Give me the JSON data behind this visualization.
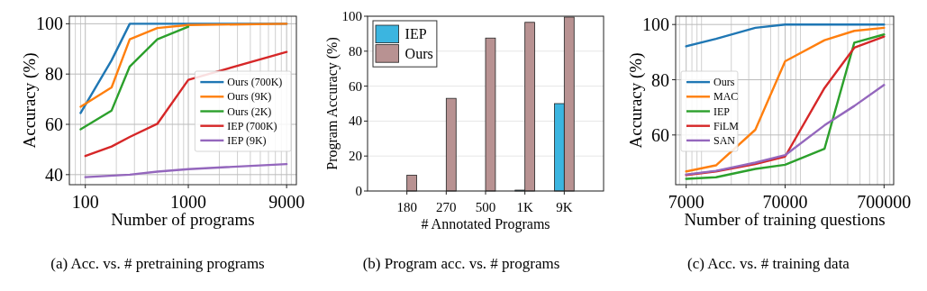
{
  "chart_data": [
    {
      "type": "line",
      "xlabel": "Number of programs",
      "ylabel": "Accuracy (%)",
      "annotations": [
        "(a) Acc. vs. # pretraining programs"
      ],
      "log": "x",
      "xlim": [
        70,
        11200
      ],
      "ylim": [
        36,
        103
      ],
      "xticks": [
        {
          "value": 80,
          "label": null
        },
        {
          "value": 90,
          "label": null
        },
        100,
        {
          "value": 200,
          "label": null
        },
        {
          "value": 300,
          "label": null
        },
        {
          "value": 400,
          "label": null
        },
        {
          "value": 500,
          "label": null
        },
        {
          "value": 600,
          "label": null
        },
        {
          "value": 700,
          "label": null
        },
        {
          "value": 800,
          "label": null
        },
        {
          "value": 900,
          "label": null
        },
        1000,
        {
          "value": 2000,
          "label": null
        },
        {
          "value": 3000,
          "label": null
        },
        {
          "value": 4000,
          "label": null
        },
        {
          "value": 5000,
          "label": null
        },
        {
          "value": 6000,
          "label": null
        },
        {
          "value": 7000,
          "label": null
        },
        {
          "value": 8000,
          "label": null
        },
        9000,
        {
          "value": 10000,
          "label": null
        }
      ],
      "yticks": [
        40,
        60,
        80,
        100
      ],
      "grid": true,
      "legend": "right",
      "series": [
        {
          "name": "Ours (700K)",
          "color": "#1f77b4",
          "x": [
            90,
            180,
            270,
            500,
            1000,
            9000
          ],
          "values": [
            64.5,
            85.5,
            100,
            100,
            100,
            100
          ]
        },
        {
          "name": "Ours (9K)",
          "color": "#ff7f0e",
          "x": [
            90,
            180,
            270,
            500,
            1000,
            9000
          ],
          "values": [
            67,
            74.7,
            93.8,
            98.3,
            99.5,
            100
          ]
        },
        {
          "name": "Ours (2K)",
          "color": "#2ca02c",
          "x": [
            90,
            180,
            270,
            500,
            1000
          ],
          "values": [
            58,
            65.5,
            83,
            93.8,
            98.8
          ]
        },
        {
          "name": "IEP (700K)",
          "color": "#d62728",
          "x": [
            100,
            180,
            270,
            500,
            1000,
            9000
          ],
          "values": [
            47.4,
            51.2,
            55,
            60.2,
            77.7,
            88.8
          ]
        },
        {
          "name": "IEP (9K)",
          "color": "#9467bd",
          "x": [
            100,
            270,
            500,
            1000,
            9000
          ],
          "values": [
            39,
            40,
            41.2,
            42.2,
            44.2
          ]
        }
      ]
    },
    {
      "type": "bar",
      "xlabel": "# Annotated Programs",
      "ylabel": "Program Accuracy (%)",
      "annotations": [
        "(b) Program acc. vs. # programs"
      ],
      "categories": [
        "180",
        "270",
        "500",
        "1K",
        "9K"
      ],
      "ylim": [
        0,
        100
      ],
      "yticks": [
        0,
        20,
        40,
        60,
        80,
        100
      ],
      "grid": "y",
      "legend": "top left",
      "series": [
        {
          "name": "IEP",
          "color": "#3bb5e0",
          "values": [
            0,
            0,
            0,
            0.5,
            50
          ]
        },
        {
          "name": "Ours",
          "color": "#b89292",
          "values": [
            9,
            53,
            87.5,
            96.5,
            99.5
          ]
        }
      ]
    },
    {
      "type": "line",
      "xlabel": "Number of training questions",
      "ylabel": "Accuracy (%)",
      "annotations": [
        "(c) Acc. vs. # training data"
      ],
      "log": "x",
      "xlim": [
        5480,
        875000
      ],
      "ylim": [
        42,
        103
      ],
      "xticks": [
        {
          "value": 6000,
          "label": null
        },
        7000,
        {
          "value": 8000,
          "label": null
        },
        {
          "value": 9000,
          "label": null
        },
        {
          "value": 10000,
          "label": null
        },
        {
          "value": 20000,
          "label": null
        },
        {
          "value": 30000,
          "label": null
        },
        {
          "value": 40000,
          "label": null
        },
        {
          "value": 50000,
          "label": null
        },
        {
          "value": 60000,
          "label": null
        },
        70000,
        {
          "value": 80000,
          "label": null
        },
        {
          "value": 90000,
          "label": null
        },
        {
          "value": 100000,
          "label": null
        },
        {
          "value": 200000,
          "label": null
        },
        {
          "value": 300000,
          "label": null
        },
        {
          "value": 400000,
          "label": null
        },
        {
          "value": 500000,
          "label": null
        },
        {
          "value": 600000,
          "label": null
        },
        700000,
        {
          "value": 800000,
          "label": null
        }
      ],
      "yticks": [
        60,
        80,
        100
      ],
      "grid": true,
      "legend": "left",
      "x": [
        7000,
        14000,
        35000,
        70000,
        175000,
        350000,
        700000
      ],
      "series": [
        {
          "name": "Ours",
          "color": "#1f77b4",
          "values": [
            92.1,
            94.8,
            98.8,
            100,
            100,
            100,
            100
          ]
        },
        {
          "name": "MAC",
          "color": "#ff7f0e",
          "values": [
            46.8,
            49,
            61.9,
            86.7,
            94.3,
            97.7,
            98.8
          ]
        },
        {
          "name": "IEP",
          "color": "#2ca02c",
          "values": [
            44.1,
            44.7,
            47.7,
            49.2,
            55,
            93.4,
            96.4
          ]
        },
        {
          "name": "FiLM",
          "color": "#d62728",
          "values": [
            45.5,
            46.8,
            49.5,
            52.2,
            77,
            91.6,
            95.6
          ]
        },
        {
          "name": "SAN",
          "color": "#9467bd",
          "values": [
            45.7,
            47,
            50,
            52.7,
            63.5,
            70.5,
            78.1
          ]
        }
      ]
    }
  ]
}
